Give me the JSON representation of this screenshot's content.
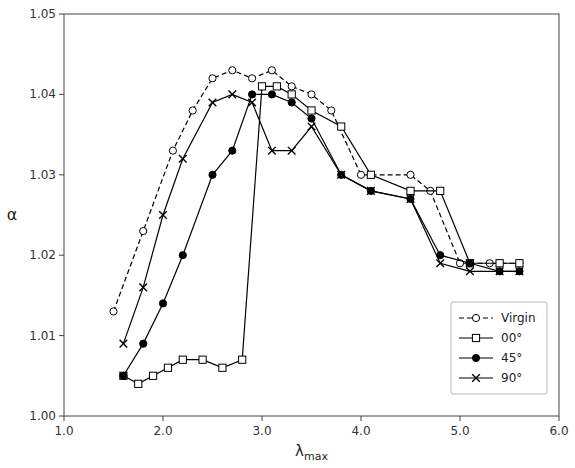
{
  "chart_data": {
    "type": "line",
    "xlabel": "λmax",
    "ylabel": "α",
    "xlim": [
      1.0,
      6.0
    ],
    "ylim": [
      1.0,
      1.05
    ],
    "xticks": [
      {
        "value": 1.0,
        "label": "1.0"
      },
      {
        "value": 2.0,
        "label": "2.0"
      },
      {
        "value": 3.0,
        "label": "3.0"
      },
      {
        "value": 4.0,
        "label": "4.0"
      },
      {
        "value": 5.0,
        "label": "5.0"
      },
      {
        "value": 6.0,
        "label": "6.0"
      }
    ],
    "yticks": [
      {
        "value": 1.0,
        "label": "1.00"
      },
      {
        "value": 1.01,
        "label": "1.01"
      },
      {
        "value": 1.02,
        "label": "1.02"
      },
      {
        "value": 1.03,
        "label": "1.03"
      },
      {
        "value": 1.04,
        "label": "1.04"
      },
      {
        "value": 1.05,
        "label": "1.05"
      }
    ],
    "grid": false,
    "legend": "lower right",
    "series": [
      {
        "name": "Virgin",
        "color": "#000000",
        "marker": "circle-open",
        "line_style": "dashed",
        "x": [
          1.5,
          1.8,
          2.1,
          2.3,
          2.5,
          2.7,
          2.9,
          3.1,
          3.3,
          3.5,
          3.7,
          4.0,
          4.5,
          4.7,
          5.0,
          5.3,
          5.6
        ],
        "values": [
          1.013,
          1.023,
          1.033,
          1.038,
          1.042,
          1.043,
          1.042,
          1.043,
          1.041,
          1.04,
          1.038,
          1.03,
          1.03,
          1.028,
          1.019,
          1.019,
          1.019
        ]
      },
      {
        "name": "00°",
        "color": "#000000",
        "marker": "square-open",
        "line_style": "solid",
        "x": [
          1.6,
          1.75,
          1.9,
          2.05,
          2.2,
          2.4,
          2.6,
          2.8,
          3.0,
          3.15,
          3.3,
          3.5,
          3.8,
          4.1,
          4.5,
          4.8,
          5.1,
          5.4,
          5.6
        ],
        "values": [
          1.005,
          1.004,
          1.005,
          1.006,
          1.007,
          1.007,
          1.006,
          1.007,
          1.041,
          1.041,
          1.04,
          1.038,
          1.036,
          1.03,
          1.028,
          1.028,
          1.019,
          1.019,
          1.019
        ]
      },
      {
        "name": "45°",
        "color": "#000000",
        "marker": "circle",
        "line_style": "solid",
        "x": [
          1.6,
          1.8,
          2.0,
          2.2,
          2.5,
          2.7,
          2.9,
          3.1,
          3.3,
          3.5,
          3.8,
          4.1,
          4.5,
          4.8,
          5.1,
          5.4,
          5.6
        ],
        "values": [
          1.005,
          1.009,
          1.014,
          1.02,
          1.03,
          1.033,
          1.04,
          1.04,
          1.039,
          1.037,
          1.03,
          1.028,
          1.027,
          1.02,
          1.019,
          1.018,
          1.018
        ]
      },
      {
        "name": "90°",
        "color": "#000000",
        "marker": "x",
        "line_style": "solid",
        "x": [
          1.6,
          1.8,
          2.0,
          2.2,
          2.5,
          2.7,
          2.9,
          3.1,
          3.3,
          3.5,
          3.8,
          4.1,
          4.5,
          4.8,
          5.1,
          5.4,
          5.6
        ],
        "values": [
          1.009,
          1.016,
          1.025,
          1.032,
          1.039,
          1.04,
          1.039,
          1.033,
          1.033,
          1.036,
          1.03,
          1.028,
          1.027,
          1.019,
          1.018,
          1.018,
          1.018
        ]
      }
    ]
  }
}
